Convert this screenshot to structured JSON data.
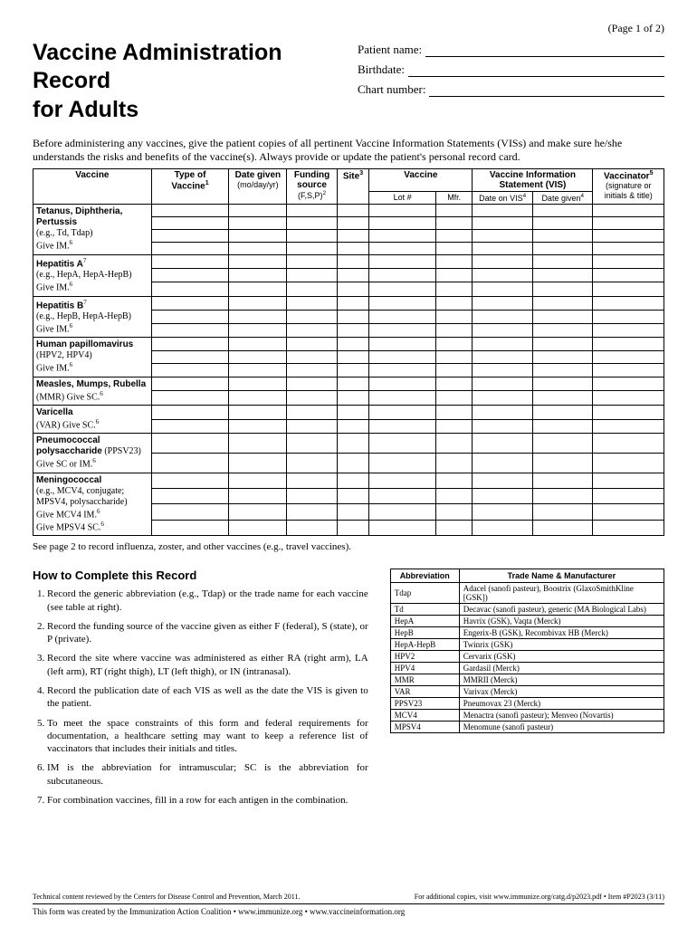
{
  "page_label": "(Page 1 of 2)",
  "title_line1": "Vaccine Administration Record",
  "title_line2": "for Adults",
  "patient_fields": {
    "name_label": "Patient name:",
    "birthdate_label": "Birthdate:",
    "chart_label": "Chart number:"
  },
  "intro_text": "Before administering any vaccines, give the patient copies of all pertinent Vaccine Information Statements (VISs) and make sure he/she understands the risks and benefits of the vaccine(s). Always provide or update the patient's personal record card.",
  "table_headers": {
    "vaccine": "Vaccine",
    "type": "Type of Vaccine",
    "type_sup": "1",
    "date_given": "Date given",
    "date_given_sub": "(mo/day/yr)",
    "funding": "Funding source",
    "funding_sub": "(F,S,P)",
    "funding_sup": "2",
    "site": "Site",
    "site_sup": "3",
    "vaccine2": "Vaccine",
    "lot": "Lot #",
    "mfr": "Mfr.",
    "vis": "Vaccine Information Statement (VIS)",
    "date_on_vis": "Date on VIS",
    "date_on_vis_sup": "4",
    "date_given2": "Date given",
    "date_given2_sup": "4",
    "vaccinator": "Vaccinator",
    "vaccinator_sup": "5",
    "vaccinator_sub": "(signature or initials & title)"
  },
  "vaccine_rows": [
    {
      "bold": "Tetanus, Diphtheria, Pertussis",
      "detail": "(e.g., Td, Tdap)",
      "route": "Give IM.",
      "route_sup": "6",
      "rows": 4
    },
    {
      "bold": "Hepatitis A",
      "bold_sup": "7",
      "detail": "(e.g., HepA, HepA-HepB)",
      "route": "Give IM.",
      "route_sup": "6",
      "rows": 3
    },
    {
      "bold": "Hepatitis B",
      "bold_sup": "7",
      "detail": "(e.g., HepB, HepA-HepB)",
      "route": "Give IM.",
      "route_sup": "6",
      "rows": 3
    },
    {
      "bold": "Human papillomavirus",
      "detail": "(HPV2, HPV4)",
      "route": "Give IM.",
      "route_sup": "6",
      "rows": 3
    },
    {
      "bold": "Measles, Mumps, Rubella",
      "detail": "(MMR) Give SC.",
      "detail_sup": "6",
      "rows": 2
    },
    {
      "bold": "Varicella",
      "detail": "(VAR) Give SC.",
      "detail_sup": "6",
      "rows": 2
    },
    {
      "bold": "Pneumococcal polysaccharide",
      "inline_detail": " (PPSV23)",
      "route": "Give SC or IM.",
      "route_sup": "6",
      "rows": 2
    },
    {
      "bold": "Meningococcal",
      "detail": "(e.g., MCV4, conjugate; MPSV4, polysaccharide)",
      "route": "Give MCV4 IM.",
      "route_sup": "6",
      "route2": "Give MPSV4 SC.",
      "route2_sup": "6",
      "rows": 4
    }
  ],
  "see_page2": "See page 2 to record influenza, zoster, and other vaccines (e.g., travel vaccines).",
  "instructions_title": "How to Complete this Record",
  "instructions": [
    "Record the generic abbreviation (e.g., Tdap) or the trade name for each vaccine (see table at right).",
    "Record the funding source of the vaccine given as either F (federal), S (state), or P (private).",
    "Record the site where vaccine was administered as either RA (right arm), LA (left arm), RT (right thigh), LT (left thigh), or IN (intranasal).",
    "Record the publication date of each VIS as well as the date the VIS is given to the patient.",
    "To meet the space constraints of this form and federal requirements for documentation, a healthcare setting may want to keep a reference list of vaccinators that includes their initials and titles.",
    "IM is the abbreviation for intramuscular; SC is the abbreviation for subcutaneous.",
    "For combination vaccines, fill in a row for each antigen in the combination."
  ],
  "abbrev_headers": {
    "abbr": "Abbreviation",
    "trade": "Trade Name & Manufacturer"
  },
  "abbrev_rows": [
    {
      "abbr": "Tdap",
      "trade": "Adacel (sanofi pasteur), Boostrix (GlaxoSmithKline [GSK])"
    },
    {
      "abbr": "Td",
      "trade": "Decavac (sanofi pasteur), generic (MA Biological Labs)"
    },
    {
      "abbr": "HepA",
      "trade": "Havrix (GSK), Vaqta (Merck)"
    },
    {
      "abbr": "HepB",
      "trade": "Engerix-B (GSK), Recombivax HB (Merck)"
    },
    {
      "abbr": "HepA-HepB",
      "trade": "Twinrix (GSK)"
    },
    {
      "abbr": "HPV2",
      "trade": "Cervarix (GSK)"
    },
    {
      "abbr": "HPV4",
      "trade": "Gardasil (Merck)"
    },
    {
      "abbr": "MMR",
      "trade": "MMRII (Merck)"
    },
    {
      "abbr": "VAR",
      "trade": "Varivax (Merck)"
    },
    {
      "abbr": "PPSV23",
      "trade": "Pneumovax 23 (Merck)"
    },
    {
      "abbr": "MCV4",
      "trade": "Menactra (sanofi pasteur); Menveo (Novartis)"
    },
    {
      "abbr": "MPSV4",
      "trade": "Menomune (sanofi pasteur)"
    }
  ],
  "footer": {
    "review": "Technical content reviewed by the Centers for Disease Control and Prevention, March 2011.",
    "copies": "For additional copies, visit www.immunize.org/catg.d/p2023.pdf  •  Item #P2023 (3/11)",
    "org": "This form was created by the Immunization Action Coalition  •  www.immunize.org  •  www.vaccineinformation.org"
  }
}
